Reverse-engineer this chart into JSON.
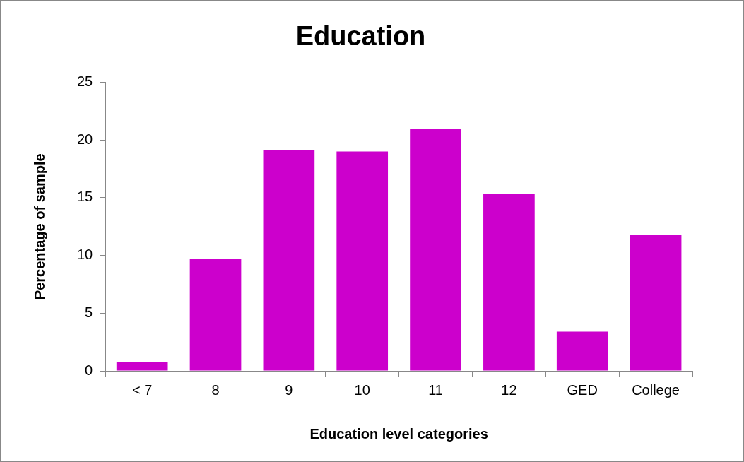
{
  "chart_data": {
    "type": "bar",
    "title": "Education",
    "xlabel": "Education level categories",
    "ylabel": "Percentage of sample",
    "categories": [
      "< 7",
      "8",
      "9",
      "10",
      "11",
      "12",
      "GED",
      "College"
    ],
    "values": [
      0.8,
      9.7,
      19.1,
      19.0,
      21.0,
      15.3,
      3.4,
      11.8
    ],
    "color": "#cc00cc",
    "ylim": [
      0,
      25
    ],
    "yticks": [
      0,
      5,
      10,
      15,
      20,
      25
    ],
    "grid": false,
    "legend": false
  }
}
